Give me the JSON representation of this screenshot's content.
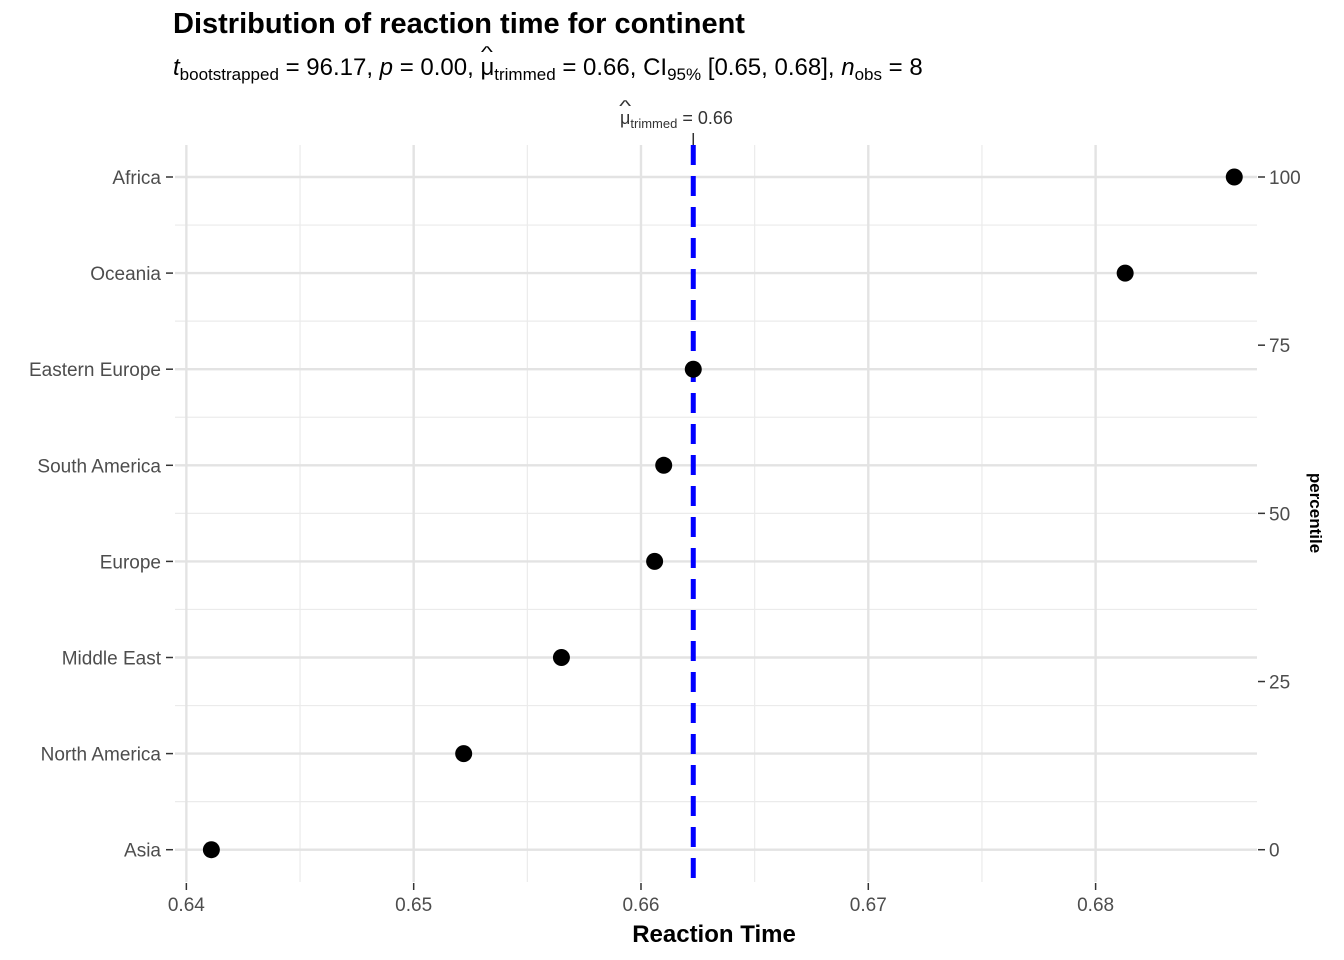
{
  "chart_data": {
    "type": "scatter",
    "title": "Distribution of reaction time for continent",
    "subtitle": {
      "t_label": "t",
      "t_sub": "bootstrapped",
      "t_value": " = 96.17, ",
      "p_label": "p",
      "p_value": " = 0.00, ",
      "mu_symbol": "μ",
      "mu_sub": "trimmed",
      "mu_value": " = 0.66, CI",
      "ci_sub": "95%",
      "ci_value": " [0.65, 0.68], ",
      "n_label": "n",
      "n_sub": "obs",
      "n_value": " = 8"
    },
    "reference_line": {
      "value": 0.6623,
      "symbol": "μ",
      "sub": "trimmed",
      "text": " = 0.66",
      "color": "#0000ff"
    },
    "xlabel": "Reaction Time",
    "y2label": "percentile",
    "xlim": [
      0.6395,
      0.6871
    ],
    "x_ticks": [
      "0.64",
      "0.65",
      "0.66",
      "0.67",
      "0.68"
    ],
    "x_tick_values": [
      0.64,
      0.65,
      0.66,
      0.67,
      0.68
    ],
    "categories": [
      "Asia",
      "North America",
      "Middle East",
      "Europe",
      "South America",
      "Eastern Europe",
      "Oceania",
      "Africa"
    ],
    "values": [
      0.6411,
      0.6522,
      0.6565,
      0.6606,
      0.661,
      0.6623,
      0.6813,
      0.6861
    ],
    "percentile_ticks": [
      "0",
      "25",
      "50",
      "75",
      "100"
    ],
    "percentile_values": [
      0,
      25,
      50,
      75,
      100
    ],
    "grid": true,
    "point_color": "#000000"
  }
}
